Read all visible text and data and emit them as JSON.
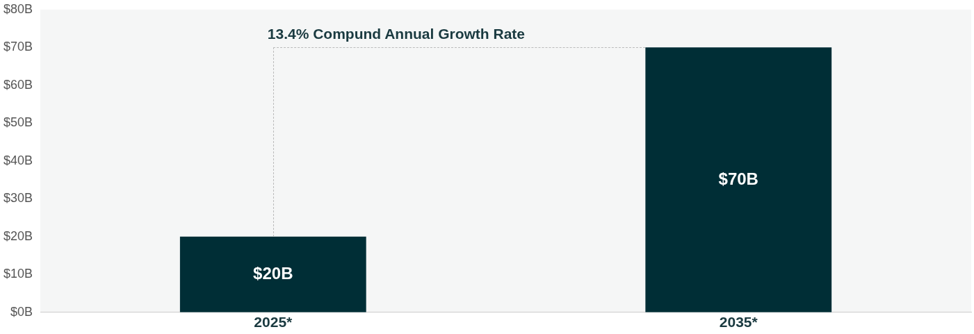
{
  "chart_data": {
    "type": "bar",
    "categories": [
      "2025*",
      "2035*"
    ],
    "values": [
      20,
      70
    ],
    "color": "#002e36",
    "value_labels": [
      "$20B",
      "$70B"
    ],
    "ylim": [
      0,
      80
    ],
    "yticks": [
      {
        "value": 0,
        "label": "$0B"
      },
      {
        "value": 10,
        "label": "$10B"
      },
      {
        "value": 20,
        "label": "$20B"
      },
      {
        "value": 30,
        "label": "$30B"
      },
      {
        "value": 40,
        "label": "$40B"
      },
      {
        "value": 50,
        "label": "$50B"
      },
      {
        "value": 60,
        "label": "$60B"
      },
      {
        "value": 70,
        "label": "$70B"
      },
      {
        "value": 80,
        "label": "$80B"
      }
    ],
    "annotations": [
      {
        "text": "13.4% Compund Annual Growth Rate",
        "x": "2025*",
        "y": 20
      }
    ],
    "grid": false,
    "legend": false
  }
}
